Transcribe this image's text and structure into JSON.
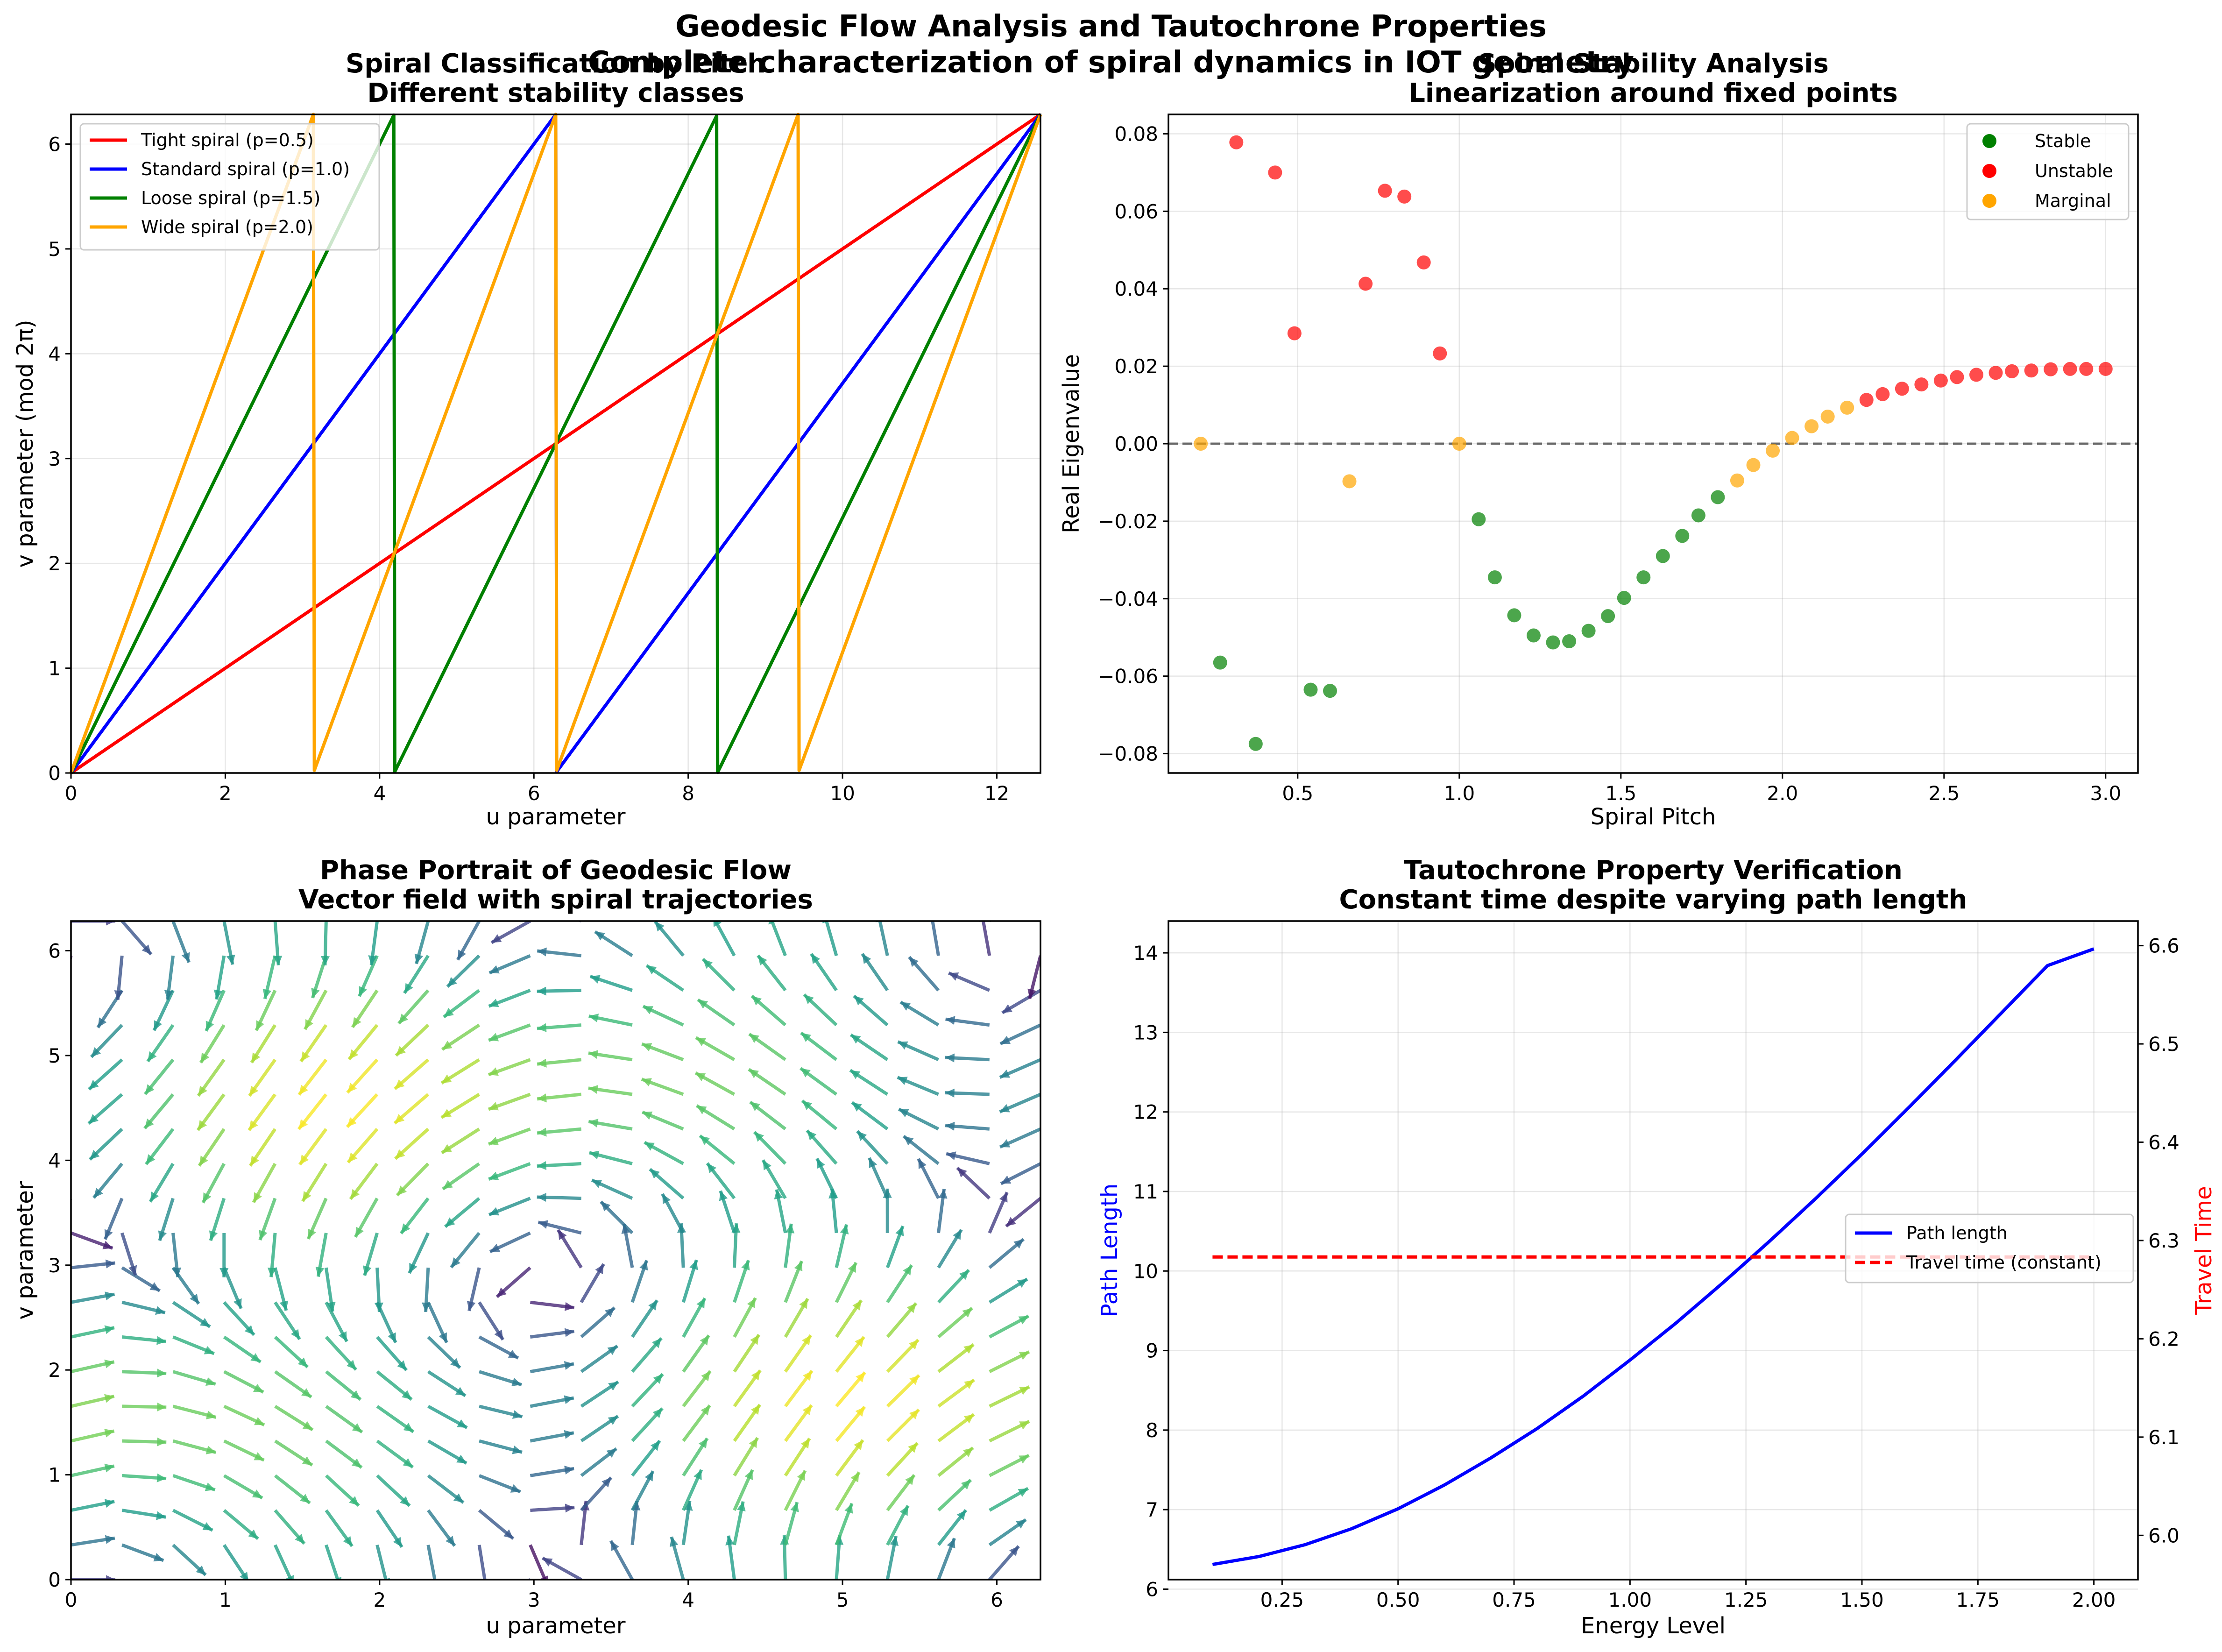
{
  "figure": {
    "suptitle": "Geodesic Flow Analysis and Tautochrone Properties",
    "subtitle": "Complete characterization of spiral dynamics in IOT geometry"
  },
  "colors": {
    "red": "#ff0000",
    "blue": "#0000ff",
    "green": "#008000",
    "orange": "#ffa500",
    "gray": "#808080",
    "stable": "#008000",
    "unstable": "#ff0000",
    "marginal": "#ffa500"
  },
  "chart_data": [
    {
      "id": "spiral",
      "type": "line",
      "title": [
        "Spiral Classification by Pitch",
        "Different stability classes"
      ],
      "xlabel": "u parameter",
      "ylabel": "v parameter (mod 2π)",
      "xlim": [
        0,
        12.566
      ],
      "ylim": [
        0,
        6.283
      ],
      "xticks": [
        0,
        2,
        4,
        6,
        8,
        10,
        12
      ],
      "yticks": [
        0,
        1,
        2,
        3,
        4,
        5,
        6
      ],
      "grid": true,
      "legend_position": "upper-left",
      "modulus": 6.283185307,
      "series": [
        {
          "name": "Tight spiral (p=0.5)",
          "color": "#ff0000",
          "slope": 0.5
        },
        {
          "name": "Standard spiral (p=1.0)",
          "color": "#0000ff",
          "slope": 1.0
        },
        {
          "name": "Loose spiral (p=1.5)",
          "color": "#008000",
          "slope": 1.5
        },
        {
          "name": "Wide spiral (p=2.0)",
          "color": "#ffa500",
          "slope": 2.0
        }
      ]
    },
    {
      "id": "stability",
      "type": "scatter",
      "title": [
        "Spiral Stability Analysis",
        "Linearization around fixed points"
      ],
      "xlabel": "Spiral Pitch",
      "ylabel": "Real Eigenvalue",
      "xlim": [
        0.1,
        3.1
      ],
      "ylim": [
        -0.085,
        0.085
      ],
      "xticks": [
        0.5,
        1.0,
        1.5,
        2.0,
        2.5,
        3.0
      ],
      "xtick_labels": [
        "0.5",
        "1.0",
        "1.5",
        "2.0",
        "2.5",
        "3.0"
      ],
      "yticks": [
        -0.08,
        -0.06,
        -0.04,
        -0.02,
        0.0,
        0.02,
        0.04,
        0.06,
        0.08
      ],
      "ytick_labels": [
        "−0.08",
        "−0.06",
        "−0.04",
        "−0.02",
        "0.00",
        "0.02",
        "0.04",
        "0.06",
        "0.08"
      ],
      "hline": 0,
      "grid": true,
      "legend_position": "upper-right",
      "legend": [
        {
          "name": "Stable",
          "color": "#008000"
        },
        {
          "name": "Unstable",
          "color": "#ff0000"
        },
        {
          "name": "Marginal",
          "color": "#ffa500"
        }
      ],
      "points": [
        {
          "x": 0.2,
          "y": 0.0,
          "c": "marginal"
        },
        {
          "x": 0.26,
          "y": -0.0565,
          "c": "stable"
        },
        {
          "x": 0.31,
          "y": 0.0778,
          "c": "unstable"
        },
        {
          "x": 0.37,
          "y": -0.0775,
          "c": "stable"
        },
        {
          "x": 0.43,
          "y": 0.07,
          "c": "unstable"
        },
        {
          "x": 0.49,
          "y": 0.0285,
          "c": "unstable"
        },
        {
          "x": 0.54,
          "y": -0.0635,
          "c": "stable"
        },
        {
          "x": 0.6,
          "y": -0.0638,
          "c": "stable"
        },
        {
          "x": 0.66,
          "y": -0.0097,
          "c": "marginal"
        },
        {
          "x": 0.71,
          "y": 0.0413,
          "c": "unstable"
        },
        {
          "x": 0.77,
          "y": 0.0653,
          "c": "unstable"
        },
        {
          "x": 0.83,
          "y": 0.0638,
          "c": "unstable"
        },
        {
          "x": 0.89,
          "y": 0.0468,
          "c": "unstable"
        },
        {
          "x": 0.94,
          "y": 0.0233,
          "c": "unstable"
        },
        {
          "x": 1.0,
          "y": 0.0,
          "c": "marginal"
        },
        {
          "x": 1.06,
          "y": -0.0195,
          "c": "stable"
        },
        {
          "x": 1.11,
          "y": -0.0345,
          "c": "stable"
        },
        {
          "x": 1.17,
          "y": -0.0443,
          "c": "stable"
        },
        {
          "x": 1.23,
          "y": -0.0495,
          "c": "stable"
        },
        {
          "x": 1.29,
          "y": -0.0513,
          "c": "stable"
        },
        {
          "x": 1.34,
          "y": -0.051,
          "c": "stable"
        },
        {
          "x": 1.4,
          "y": -0.0483,
          "c": "stable"
        },
        {
          "x": 1.46,
          "y": -0.0445,
          "c": "stable"
        },
        {
          "x": 1.51,
          "y": -0.0398,
          "c": "stable"
        },
        {
          "x": 1.57,
          "y": -0.0345,
          "c": "stable"
        },
        {
          "x": 1.63,
          "y": -0.029,
          "c": "stable"
        },
        {
          "x": 1.69,
          "y": -0.0238,
          "c": "stable"
        },
        {
          "x": 1.74,
          "y": -0.0185,
          "c": "stable"
        },
        {
          "x": 1.8,
          "y": -0.0138,
          "c": "stable"
        },
        {
          "x": 1.86,
          "y": -0.0095,
          "c": "marginal"
        },
        {
          "x": 1.91,
          "y": -0.0055,
          "c": "marginal"
        },
        {
          "x": 1.97,
          "y": -0.0018,
          "c": "marginal"
        },
        {
          "x": 2.03,
          "y": 0.0015,
          "c": "marginal"
        },
        {
          "x": 2.09,
          "y": 0.0045,
          "c": "marginal"
        },
        {
          "x": 2.14,
          "y": 0.007,
          "c": "marginal"
        },
        {
          "x": 2.2,
          "y": 0.0093,
          "c": "marginal"
        },
        {
          "x": 2.26,
          "y": 0.0113,
          "c": "unstable"
        },
        {
          "x": 2.31,
          "y": 0.0128,
          "c": "unstable"
        },
        {
          "x": 2.37,
          "y": 0.0142,
          "c": "unstable"
        },
        {
          "x": 2.43,
          "y": 0.0153,
          "c": "unstable"
        },
        {
          "x": 2.49,
          "y": 0.0163,
          "c": "unstable"
        },
        {
          "x": 2.54,
          "y": 0.0172,
          "c": "unstable"
        },
        {
          "x": 2.6,
          "y": 0.0178,
          "c": "unstable"
        },
        {
          "x": 2.66,
          "y": 0.0183,
          "c": "unstable"
        },
        {
          "x": 2.71,
          "y": 0.0187,
          "c": "unstable"
        },
        {
          "x": 2.77,
          "y": 0.0189,
          "c": "unstable"
        },
        {
          "x": 2.83,
          "y": 0.0192,
          "c": "unstable"
        },
        {
          "x": 2.89,
          "y": 0.0193,
          "c": "unstable"
        },
        {
          "x": 2.94,
          "y": 0.0193,
          "c": "unstable"
        },
        {
          "x": 3.0,
          "y": 0.0193,
          "c": "unstable"
        }
      ]
    },
    {
      "id": "phase",
      "type": "quiver",
      "title": [
        "Phase Portrait of Geodesic Flow",
        "Vector field with spiral trajectories"
      ],
      "xlabel": "u parameter",
      "ylabel": "v parameter",
      "xlim": [
        0,
        6.283
      ],
      "ylim": [
        0,
        6.283
      ],
      "xticks": [
        0,
        1,
        2,
        3,
        4,
        5,
        6
      ],
      "yticks": [
        0,
        1,
        2,
        3,
        4,
        5,
        6
      ],
      "grid_n": 20,
      "colormap": "viridis"
    },
    {
      "id": "tautochrone",
      "type": "line",
      "title": [
        "Tautochrone Property Verification",
        "Constant time despite varying path length"
      ],
      "xlabel": "Energy Level",
      "ylabel": "Path Length",
      "ylabel_right": "Travel Time",
      "xlim": [
        0.005,
        2.095
      ],
      "ylim": [
        6.12,
        14.4
      ],
      "ylim_right": [
        5.955,
        6.625
      ],
      "xticks": [
        0.25,
        0.5,
        0.75,
        1.0,
        1.25,
        1.5,
        1.75,
        2.0
      ],
      "xtick_labels": [
        "0.25",
        "0.50",
        "0.75",
        "1.00",
        "1.25",
        "1.50",
        "1.75",
        "2.00"
      ],
      "yticks": [
        6,
        7,
        8,
        9,
        10,
        11,
        12,
        13,
        14
      ],
      "yticks_right": [
        6.0,
        6.1,
        6.2,
        6.3,
        6.4,
        6.5,
        6.6
      ],
      "ytick_labels_right": [
        "6.0",
        "6.1",
        "6.2",
        "6.3",
        "6.4",
        "6.5",
        "6.6"
      ],
      "grid": true,
      "legend_position": "center-right",
      "series": [
        {
          "name": "Path length",
          "color": "#0000ff",
          "style": "solid",
          "axis": "left",
          "x": [
            0.1,
            0.2,
            0.3,
            0.4,
            0.5,
            0.6,
            0.7,
            0.8,
            0.9,
            1.0,
            1.1,
            1.2,
            1.3,
            1.4,
            1.5,
            1.6,
            1.7,
            1.8,
            1.9,
            2.0
          ],
          "y": [
            6.31,
            6.41,
            6.56,
            6.76,
            7.01,
            7.31,
            7.65,
            8.02,
            8.43,
            8.88,
            9.35,
            9.85,
            10.37,
            10.91,
            11.47,
            12.05,
            12.64,
            13.24,
            13.84,
            14.05
          ]
        },
        {
          "name": "Travel time (constant)",
          "color": "#ff0000",
          "style": "dashed",
          "axis": "right",
          "x": [
            0.1,
            2.0
          ],
          "y": [
            6.2832,
            6.2832
          ]
        }
      ]
    }
  ]
}
